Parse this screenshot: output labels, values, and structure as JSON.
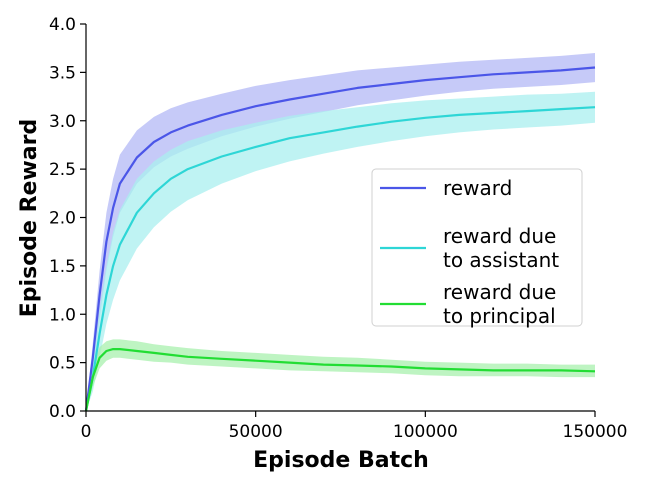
{
  "chart_data": {
    "type": "line",
    "title": "",
    "xlabel": "Episode Batch",
    "ylabel": "Episode Reward",
    "xlim": [
      0,
      150000
    ],
    "ylim": [
      0,
      4.0
    ],
    "x_ticks": [
      0,
      50000,
      100000,
      150000
    ],
    "x_tick_labels": [
      "0",
      "50000",
      "100000",
      "150000"
    ],
    "y_ticks": [
      0,
      0.5,
      1.0,
      1.5,
      2.0,
      2.5,
      3.0,
      3.5,
      4.0
    ],
    "y_tick_labels": [
      "0.0",
      "0.5",
      "1.0",
      "1.5",
      "2.0",
      "2.5",
      "3.0",
      "3.5",
      "4.0"
    ],
    "grid": false,
    "legend_position": "center-right",
    "x": [
      0,
      2000,
      4000,
      6000,
      8000,
      10000,
      15000,
      20000,
      25000,
      30000,
      40000,
      50000,
      60000,
      70000,
      80000,
      90000,
      100000,
      110000,
      120000,
      130000,
      140000,
      150000
    ],
    "series": [
      {
        "name": "reward",
        "label_lines": [
          "reward"
        ],
        "color": "#4b56e8",
        "band_color": "#b3b8f5",
        "values": [
          0.0,
          0.55,
          1.2,
          1.75,
          2.1,
          2.35,
          2.62,
          2.78,
          2.88,
          2.95,
          3.06,
          3.15,
          3.22,
          3.28,
          3.34,
          3.38,
          3.42,
          3.45,
          3.48,
          3.5,
          3.52,
          3.55
        ],
        "lower": [
          0.0,
          0.4,
          0.95,
          1.45,
          1.8,
          2.05,
          2.35,
          2.52,
          2.63,
          2.71,
          2.84,
          2.94,
          3.02,
          3.09,
          3.16,
          3.21,
          3.26,
          3.3,
          3.33,
          3.35,
          3.37,
          3.4
        ],
        "upper": [
          0.0,
          0.7,
          1.45,
          2.05,
          2.4,
          2.65,
          2.9,
          3.04,
          3.13,
          3.19,
          3.28,
          3.36,
          3.42,
          3.47,
          3.52,
          3.55,
          3.58,
          3.61,
          3.63,
          3.65,
          3.67,
          3.7
        ]
      },
      {
        "name": "reward due to assistant",
        "label_lines": [
          "reward due",
          "to assistant"
        ],
        "color": "#2ed6d6",
        "band_color": "#a9efef",
        "values": [
          0.0,
          0.35,
          0.8,
          1.2,
          1.5,
          1.72,
          2.05,
          2.25,
          2.4,
          2.5,
          2.63,
          2.73,
          2.82,
          2.88,
          2.94,
          2.99,
          3.03,
          3.06,
          3.08,
          3.1,
          3.12,
          3.14
        ],
        "lower": [
          0.0,
          0.2,
          0.55,
          0.9,
          1.15,
          1.35,
          1.68,
          1.9,
          2.06,
          2.18,
          2.35,
          2.48,
          2.58,
          2.66,
          2.73,
          2.79,
          2.84,
          2.88,
          2.91,
          2.93,
          2.95,
          2.98
        ],
        "upper": [
          0.0,
          0.5,
          1.05,
          1.5,
          1.85,
          2.08,
          2.4,
          2.58,
          2.7,
          2.79,
          2.9,
          2.98,
          3.05,
          3.1,
          3.14,
          3.18,
          3.21,
          3.23,
          3.25,
          3.27,
          3.28,
          3.3
        ]
      },
      {
        "name": "reward due to principal",
        "label_lines": [
          "reward due",
          "to principal"
        ],
        "color": "#22dd33",
        "band_color": "#a8f0ad",
        "values": [
          0.0,
          0.35,
          0.55,
          0.62,
          0.64,
          0.64,
          0.62,
          0.6,
          0.58,
          0.56,
          0.54,
          0.52,
          0.5,
          0.48,
          0.47,
          0.46,
          0.44,
          0.43,
          0.42,
          0.42,
          0.42,
          0.41
        ],
        "lower": [
          0.0,
          0.25,
          0.44,
          0.52,
          0.55,
          0.55,
          0.53,
          0.51,
          0.5,
          0.48,
          0.46,
          0.44,
          0.42,
          0.41,
          0.4,
          0.39,
          0.37,
          0.36,
          0.36,
          0.36,
          0.35,
          0.35
        ],
        "upper": [
          0.0,
          0.45,
          0.66,
          0.72,
          0.74,
          0.74,
          0.72,
          0.69,
          0.67,
          0.65,
          0.62,
          0.6,
          0.58,
          0.56,
          0.55,
          0.53,
          0.51,
          0.5,
          0.49,
          0.49,
          0.48,
          0.48
        ]
      }
    ]
  }
}
